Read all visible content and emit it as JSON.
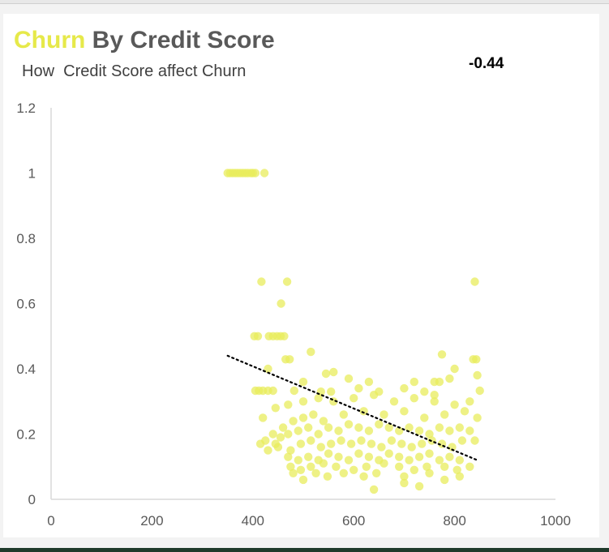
{
  "title": {
    "highlight": "Churn",
    "rest": " By Credit Score"
  },
  "subtitle": "How  Credit Score affect Churn",
  "correlation_label": "-0.44",
  "colors": {
    "points": "#e8ec5c",
    "trendline": "#000000",
    "axis": "#d9d9d9",
    "tick_text": "#595959"
  },
  "chart_data": {
    "type": "scatter",
    "title": "Churn By Credit Score",
    "subtitle": "How  Credit Score affect Churn",
    "xlabel": "",
    "ylabel": "",
    "xlim": [
      0,
      1000
    ],
    "ylim": [
      0,
      1.2
    ],
    "xticks": [
      "0",
      "200",
      "400",
      "600",
      "800",
      "1000"
    ],
    "yticks": [
      "0",
      "0.2",
      "0.4",
      "0.6",
      "0.8",
      "1",
      "1.2"
    ],
    "xtick_values": [
      0,
      200,
      400,
      600,
      800,
      1000
    ],
    "ytick_values": [
      0,
      0.2,
      0.4,
      0.6,
      0.8,
      1,
      1.2
    ],
    "grid": false,
    "legend": "none",
    "annotation": "-0.44",
    "trendline": {
      "style": "dotted",
      "x": [
        350,
        845
      ],
      "y": [
        0.44,
        0.12
      ]
    },
    "series": [
      {
        "points": [
          [
            350,
            1
          ],
          [
            355,
            1
          ],
          [
            360,
            1
          ],
          [
            365,
            1
          ],
          [
            370,
            1
          ],
          [
            375,
            1
          ],
          [
            380,
            1
          ],
          [
            385,
            1
          ],
          [
            390,
            1
          ],
          [
            396,
            1
          ],
          [
            400,
            1
          ],
          [
            405,
            1
          ],
          [
            423,
            1
          ],
          [
            417,
            0.667
          ],
          [
            468,
            0.667
          ],
          [
            840,
            0.667
          ],
          [
            456,
            0.6
          ],
          [
            403,
            0.5
          ],
          [
            410,
            0.5
          ],
          [
            432,
            0.5
          ],
          [
            440,
            0.5
          ],
          [
            448,
            0.5
          ],
          [
            455,
            0.5
          ],
          [
            462,
            0.5
          ],
          [
            465,
            0.429
          ],
          [
            473,
            0.429
          ],
          [
            515,
            0.452
          ],
          [
            775,
            0.444
          ],
          [
            837,
            0.429
          ],
          [
            843,
            0.429
          ],
          [
            430,
            0.4
          ],
          [
            800,
            0.4
          ],
          [
            560,
            0.39
          ],
          [
            545,
            0.385
          ],
          [
            590,
            0.37
          ],
          [
            630,
            0.36
          ],
          [
            720,
            0.36
          ],
          [
            760,
            0.36
          ],
          [
            770,
            0.36
          ],
          [
            790,
            0.37
          ],
          [
            845,
            0.38
          ],
          [
            405,
            0.333
          ],
          [
            412,
            0.333
          ],
          [
            420,
            0.333
          ],
          [
            430,
            0.333
          ],
          [
            440,
            0.333
          ],
          [
            482,
            0.333
          ],
          [
            500,
            0.36
          ],
          [
            535,
            0.33
          ],
          [
            555,
            0.33
          ],
          [
            610,
            0.34
          ],
          [
            650,
            0.33
          ],
          [
            700,
            0.34
          ],
          [
            740,
            0.33
          ],
          [
            760,
            0.32
          ],
          [
            850,
            0.333
          ],
          [
            420,
            0.25
          ],
          [
            445,
            0.28
          ],
          [
            470,
            0.29
          ],
          [
            500,
            0.3
          ],
          [
            530,
            0.31
          ],
          [
            560,
            0.3
          ],
          [
            600,
            0.31
          ],
          [
            640,
            0.32
          ],
          [
            680,
            0.3
          ],
          [
            720,
            0.31
          ],
          [
            760,
            0.3
          ],
          [
            800,
            0.29
          ],
          [
            830,
            0.3
          ],
          [
            440,
            0.2
          ],
          [
            460,
            0.22
          ],
          [
            480,
            0.24
          ],
          [
            500,
            0.25
          ],
          [
            520,
            0.26
          ],
          [
            540,
            0.24
          ],
          [
            580,
            0.26
          ],
          [
            620,
            0.27
          ],
          [
            660,
            0.26
          ],
          [
            700,
            0.27
          ],
          [
            740,
            0.25
          ],
          [
            780,
            0.26
          ],
          [
            820,
            0.27
          ],
          [
            845,
            0.25
          ],
          [
            415,
            0.17
          ],
          [
            425,
            0.18
          ],
          [
            445,
            0.17
          ],
          [
            455,
            0.19
          ],
          [
            470,
            0.2
          ],
          [
            490,
            0.21
          ],
          [
            510,
            0.22
          ],
          [
            530,
            0.2
          ],
          [
            550,
            0.22
          ],
          [
            570,
            0.21
          ],
          [
            590,
            0.23
          ],
          [
            610,
            0.22
          ],
          [
            630,
            0.21
          ],
          [
            650,
            0.23
          ],
          [
            670,
            0.22
          ],
          [
            690,
            0.21
          ],
          [
            710,
            0.22
          ],
          [
            730,
            0.21
          ],
          [
            750,
            0.2
          ],
          [
            770,
            0.22
          ],
          [
            790,
            0.21
          ],
          [
            810,
            0.22
          ],
          [
            830,
            0.21
          ],
          [
            430,
            0.15
          ],
          [
            450,
            0.16
          ],
          [
            475,
            0.15
          ],
          [
            495,
            0.17
          ],
          [
            515,
            0.18
          ],
          [
            535,
            0.16
          ],
          [
            555,
            0.17
          ],
          [
            575,
            0.18
          ],
          [
            595,
            0.17
          ],
          [
            615,
            0.18
          ],
          [
            635,
            0.17
          ],
          [
            655,
            0.16
          ],
          [
            675,
            0.18
          ],
          [
            695,
            0.17
          ],
          [
            715,
            0.16
          ],
          [
            735,
            0.17
          ],
          [
            755,
            0.18
          ],
          [
            775,
            0.17
          ],
          [
            795,
            0.16
          ],
          [
            815,
            0.18
          ],
          [
            840,
            0.18
          ],
          [
            470,
            0.13
          ],
          [
            490,
            0.12
          ],
          [
            510,
            0.13
          ],
          [
            530,
            0.12
          ],
          [
            550,
            0.14
          ],
          [
            570,
            0.13
          ],
          [
            590,
            0.12
          ],
          [
            610,
            0.14
          ],
          [
            630,
            0.13
          ],
          [
            650,
            0.12
          ],
          [
            670,
            0.14
          ],
          [
            690,
            0.13
          ],
          [
            710,
            0.12
          ],
          [
            730,
            0.13
          ],
          [
            750,
            0.14
          ],
          [
            770,
            0.12
          ],
          [
            790,
            0.13
          ],
          [
            810,
            0.12
          ],
          [
            475,
            0.1
          ],
          [
            495,
            0.09
          ],
          [
            515,
            0.1
          ],
          [
            540,
            0.11
          ],
          [
            565,
            0.1
          ],
          [
            600,
            0.09
          ],
          [
            625,
            0.1
          ],
          [
            660,
            0.11
          ],
          [
            690,
            0.1
          ],
          [
            720,
            0.09
          ],
          [
            745,
            0.1
          ],
          [
            780,
            0.1
          ],
          [
            805,
            0.09
          ],
          [
            830,
            0.1
          ],
          [
            480,
            0.08
          ],
          [
            500,
            0.06
          ],
          [
            525,
            0.08
          ],
          [
            548,
            0.07
          ],
          [
            580,
            0.08
          ],
          [
            620,
            0.07
          ],
          [
            645,
            0.08
          ],
          [
            700,
            0.07
          ],
          [
            750,
            0.08
          ],
          [
            780,
            0.06
          ],
          [
            810,
            0.07
          ],
          [
            640,
            0.03
          ],
          [
            730,
            0.04
          ],
          [
            700,
            0.05
          ]
        ]
      }
    ]
  }
}
